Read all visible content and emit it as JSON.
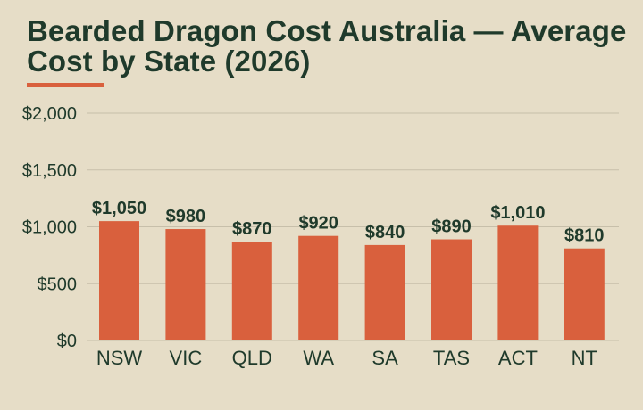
{
  "title": "Bearded Dragon Cost Australia — Average Cost by State (2026)",
  "colors": {
    "background": "#e6ddc7",
    "bar": "#d9603d",
    "text": "#1f3a2b",
    "grid": "#c7bfaa",
    "title_underline": "#d9603d"
  },
  "chart_data": {
    "type": "bar",
    "title": "Bearded Dragon Cost Australia — Average Cost by State (2026)",
    "xlabel": "",
    "ylabel": "",
    "categories": [
      "NSW",
      "VIC",
      "QLD",
      "WA",
      "SA",
      "TAS",
      "ACT",
      "NT"
    ],
    "values": [
      1050,
      980,
      870,
      920,
      840,
      890,
      1010,
      810
    ],
    "value_labels": [
      "$1,050",
      "$980",
      "$870",
      "$920",
      "$840",
      "$890",
      "$1,010",
      "$810"
    ],
    "ylim": [
      0,
      2000
    ],
    "yticks": [
      0,
      500,
      1000,
      1500,
      2000
    ],
    "ytick_labels": [
      "$0",
      "$500",
      "$1,000",
      "$1,500",
      "$2,000"
    ],
    "grid": true,
    "legend": "none"
  }
}
